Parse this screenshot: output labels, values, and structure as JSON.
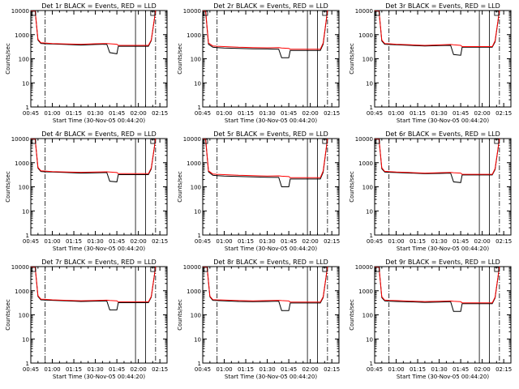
{
  "colors": {
    "events": "#000000",
    "lld": "#ff0000",
    "background": "#ffffff",
    "axes": "#000000"
  },
  "chart_data": [
    {
      "type": "line",
      "title": "Det 1r BLACK = Events, RED = LLD",
      "xlabel": "Start Time (30-Nov-05 00:44:20)",
      "ylabel": "Counts/sec",
      "x_ticks": [
        "00:45",
        "01:00",
        "01:15",
        "01:30",
        "01:45",
        "02:00",
        "02:15"
      ],
      "y_ticks": [
        "1",
        "10",
        "100",
        "1000",
        "10000"
      ],
      "y_scale": "log",
      "ylim": [
        1,
        10000
      ],
      "x": [
        "00:45",
        "00:48",
        "00:50",
        "00:52",
        "00:55",
        "01:00",
        "01:10",
        "01:20",
        "01:30",
        "01:38",
        "01:40",
        "01:45",
        "01:46",
        "01:52",
        "02:00",
        "02:07",
        "02:09",
        "02:12"
      ],
      "series": [
        {
          "name": "Events",
          "color": "#000000",
          "values": [
            10000,
            10000,
            600,
            430,
            420,
            410,
            390,
            370,
            390,
            400,
            180,
            160,
            330,
            330,
            330,
            330,
            560,
            10000
          ]
        },
        {
          "name": "LLD",
          "color": "#ff0000",
          "values": [
            10000,
            10000,
            640,
            460,
            450,
            430,
            410,
            400,
            420,
            430,
            420,
            400,
            360,
            360,
            360,
            360,
            600,
            10000
          ]
        }
      ],
      "vlines_dashdot": [
        "00:55",
        "02:12"
      ],
      "vlines_solid": [
        "01:58",
        "02:05"
      ]
    },
    {
      "type": "line",
      "title": "Det 2r BLACK = Events, RED = LLD",
      "xlabel": "Start Time (30-Nov-05 00:44:20)",
      "ylabel": "Counts/sec",
      "x_ticks": [
        "00:45",
        "01:00",
        "01:15",
        "01:30",
        "01:45",
        "02:00",
        "02:15"
      ],
      "y_ticks": [
        "1",
        "10",
        "100",
        "1000",
        "10000"
      ],
      "y_scale": "log",
      "ylim": [
        1,
        10000
      ],
      "x": [
        "00:45",
        "00:47",
        "00:49",
        "00:52",
        "00:55",
        "01:00",
        "01:10",
        "01:20",
        "01:30",
        "01:38",
        "01:40",
        "01:45",
        "01:46",
        "01:52",
        "02:00",
        "02:07",
        "02:09",
        "02:12"
      ],
      "series": [
        {
          "name": "Events",
          "color": "#000000",
          "values": [
            10000,
            10000,
            400,
            300,
            290,
            280,
            270,
            260,
            255,
            250,
            110,
            110,
            220,
            220,
            220,
            220,
            400,
            10000
          ]
        },
        {
          "name": "LLD",
          "color": "#ff0000",
          "values": [
            10000,
            10000,
            450,
            340,
            330,
            320,
            300,
            290,
            285,
            290,
            280,
            270,
            250,
            250,
            250,
            250,
            450,
            10000
          ]
        }
      ],
      "vlines_dashdot": [
        "00:55",
        "02:12"
      ],
      "vlines_solid": [
        "01:58",
        "02:05"
      ]
    },
    {
      "type": "line",
      "title": "Det 3r BLACK = Events, RED = LLD",
      "xlabel": "Start Time (30-Nov-05 00:44:20)",
      "ylabel": "Counts/sec",
      "x_ticks": [
        "00:45",
        "01:00",
        "01:15",
        "01:30",
        "01:45",
        "02:00",
        "02:15"
      ],
      "y_ticks": [
        "1",
        "10",
        "100",
        "1000",
        "10000"
      ],
      "y_scale": "log",
      "ylim": [
        1,
        10000
      ],
      "x": [
        "00:45",
        "00:48",
        "00:50",
        "00:52",
        "00:55",
        "01:00",
        "01:10",
        "01:20",
        "01:30",
        "01:38",
        "01:40",
        "01:45",
        "01:46",
        "01:52",
        "02:00",
        "02:07",
        "02:09",
        "02:12"
      ],
      "series": [
        {
          "name": "Events",
          "color": "#000000",
          "values": [
            10000,
            10000,
            550,
            400,
            390,
            380,
            360,
            340,
            350,
            360,
            150,
            140,
            300,
            300,
            300,
            300,
            500,
            10000
          ]
        },
        {
          "name": "LLD",
          "color": "#ff0000",
          "values": [
            10000,
            10000,
            600,
            430,
            420,
            400,
            380,
            360,
            375,
            390,
            380,
            360,
            320,
            320,
            320,
            320,
            550,
            10000
          ]
        }
      ],
      "vlines_dashdot": [
        "00:55",
        "02:12"
      ],
      "vlines_solid": [
        "01:58",
        "02:05"
      ]
    },
    {
      "type": "line",
      "title": "Det 4r BLACK = Events, RED = LLD",
      "xlabel": "Start Time (30-Nov-05 00:44:20)",
      "ylabel": "Counts/sec",
      "x_ticks": [
        "00:45",
        "01:00",
        "01:15",
        "01:30",
        "01:45",
        "02:00",
        "02:15"
      ],
      "y_ticks": [
        "1",
        "10",
        "100",
        "1000",
        "10000"
      ],
      "y_scale": "log",
      "ylim": [
        1,
        10000
      ],
      "x": [
        "00:45",
        "00:48",
        "00:50",
        "00:52",
        "00:55",
        "01:00",
        "01:10",
        "01:20",
        "01:30",
        "01:38",
        "01:40",
        "01:45",
        "01:46",
        "01:52",
        "02:00",
        "02:07",
        "02:09",
        "02:12"
      ],
      "series": [
        {
          "name": "Events",
          "color": "#000000",
          "values": [
            10000,
            10000,
            600,
            430,
            420,
            410,
            390,
            370,
            380,
            390,
            170,
            160,
            320,
            320,
            320,
            320,
            550,
            10000
          ]
        },
        {
          "name": "LLD",
          "color": "#ff0000",
          "values": [
            10000,
            10000,
            640,
            460,
            450,
            430,
            410,
            400,
            410,
            420,
            410,
            390,
            350,
            350,
            350,
            350,
            600,
            10000
          ]
        }
      ],
      "vlines_dashdot": [
        "00:55",
        "02:12"
      ],
      "vlines_solid": [
        "01:58",
        "02:05"
      ]
    },
    {
      "type": "line",
      "title": "Det 5r BLACK = Events, RED = LLD",
      "xlabel": "Start Time (30-Nov-05 00:44:20)",
      "ylabel": "Counts/sec",
      "x_ticks": [
        "00:45",
        "01:00",
        "01:15",
        "01:30",
        "01:45",
        "02:00",
        "02:15"
      ],
      "y_ticks": [
        "1",
        "10",
        "100",
        "1000",
        "10000"
      ],
      "y_scale": "log",
      "ylim": [
        1,
        10000
      ],
      "x": [
        "00:45",
        "00:47",
        "00:49",
        "00:52",
        "00:55",
        "01:00",
        "01:10",
        "01:20",
        "01:30",
        "01:38",
        "01:40",
        "01:45",
        "01:46",
        "01:52",
        "02:00",
        "02:07",
        "02:09",
        "02:12"
      ],
      "series": [
        {
          "name": "Events",
          "color": "#000000",
          "values": [
            10000,
            10000,
            420,
            300,
            290,
            280,
            270,
            260,
            250,
            245,
            100,
            100,
            210,
            210,
            210,
            210,
            400,
            10000
          ]
        },
        {
          "name": "LLD",
          "color": "#ff0000",
          "values": [
            10000,
            10000,
            460,
            340,
            330,
            320,
            300,
            290,
            280,
            285,
            275,
            265,
            240,
            240,
            240,
            240,
            450,
            10000
          ]
        }
      ],
      "vlines_dashdot": [
        "00:55",
        "02:12"
      ],
      "vlines_solid": [
        "01:58",
        "02:05"
      ]
    },
    {
      "type": "line",
      "title": "Det 6r BLACK = Events, RED = LLD",
      "xlabel": "Start Time (30-Nov-05 00:44:20)",
      "ylabel": "Counts/sec",
      "x_ticks": [
        "00:45",
        "01:00",
        "01:15",
        "01:30",
        "01:45",
        "02:00",
        "02:15"
      ],
      "y_ticks": [
        "1",
        "10",
        "100",
        "1000",
        "10000"
      ],
      "y_scale": "log",
      "ylim": [
        1,
        10000
      ],
      "x": [
        "00:45",
        "00:48",
        "00:50",
        "00:52",
        "00:55",
        "01:00",
        "01:10",
        "01:20",
        "01:30",
        "01:38",
        "01:40",
        "01:45",
        "01:46",
        "01:52",
        "02:00",
        "02:07",
        "02:09",
        "02:12"
      ],
      "series": [
        {
          "name": "Events",
          "color": "#000000",
          "values": [
            10000,
            10000,
            560,
            410,
            400,
            390,
            370,
            350,
            360,
            370,
            160,
            150,
            310,
            310,
            310,
            310,
            520,
            10000
          ]
        },
        {
          "name": "LLD",
          "color": "#ff0000",
          "values": [
            10000,
            10000,
            610,
            440,
            430,
            410,
            390,
            370,
            385,
            395,
            385,
            370,
            330,
            330,
            330,
            330,
            560,
            10000
          ]
        }
      ],
      "vlines_dashdot": [
        "00:55",
        "02:12"
      ],
      "vlines_solid": [
        "01:58",
        "02:05"
      ]
    },
    {
      "type": "line",
      "title": "Det 7r BLACK = Events, RED = LLD",
      "xlabel": "Start Time (30-Nov-05 00:44:20)",
      "ylabel": "Counts/sec",
      "x_ticks": [
        "00:45",
        "01:00",
        "01:15",
        "01:30",
        "01:45",
        "02:00",
        "02:15"
      ],
      "y_ticks": [
        "1",
        "10",
        "100",
        "1000",
        "10000"
      ],
      "y_scale": "log",
      "ylim": [
        1,
        10000
      ],
      "x": [
        "00:45",
        "00:48",
        "00:50",
        "00:52",
        "00:55",
        "01:00",
        "01:10",
        "01:20",
        "01:30",
        "01:38",
        "01:40",
        "01:45",
        "01:46",
        "01:52",
        "02:00",
        "02:07",
        "02:09",
        "02:12"
      ],
      "series": [
        {
          "name": "Events",
          "color": "#000000",
          "values": [
            10000,
            10000,
            580,
            420,
            410,
            400,
            380,
            360,
            370,
            380,
            160,
            160,
            320,
            320,
            320,
            320,
            540,
            10000
          ]
        },
        {
          "name": "LLD",
          "color": "#ff0000",
          "values": [
            10000,
            10000,
            620,
            450,
            440,
            420,
            400,
            385,
            395,
            405,
            395,
            380,
            345,
            345,
            345,
            345,
            580,
            10000
          ]
        }
      ],
      "vlines_dashdot": [
        "00:55",
        "02:12"
      ],
      "vlines_solid": [
        "01:58",
        "02:05"
      ]
    },
    {
      "type": "line",
      "title": "Det 8r BLACK = Events, RED = LLD",
      "xlabel": "Start Time (30-Nov-05 00:44:20)",
      "ylabel": "Counts/sec",
      "x_ticks": [
        "00:45",
        "01:00",
        "01:15",
        "01:30",
        "01:45",
        "02:00",
        "02:15"
      ],
      "y_ticks": [
        "1",
        "10",
        "100",
        "1000",
        "10000"
      ],
      "y_scale": "log",
      "ylim": [
        1,
        10000
      ],
      "x": [
        "00:45",
        "00:48",
        "00:50",
        "00:52",
        "00:55",
        "01:00",
        "01:10",
        "01:20",
        "01:30",
        "01:38",
        "01:40",
        "01:45",
        "01:46",
        "01:52",
        "02:00",
        "02:07",
        "02:09",
        "02:12"
      ],
      "series": [
        {
          "name": "Events",
          "color": "#000000",
          "values": [
            10000,
            10000,
            560,
            400,
            390,
            380,
            360,
            350,
            360,
            370,
            150,
            150,
            310,
            310,
            310,
            310,
            520,
            10000
          ]
        },
        {
          "name": "LLD",
          "color": "#ff0000",
          "values": [
            10000,
            10000,
            600,
            430,
            420,
            410,
            390,
            380,
            390,
            400,
            390,
            375,
            340,
            340,
            340,
            340,
            560,
            10000
          ]
        }
      ],
      "vlines_dashdot": [
        "00:55",
        "02:12"
      ],
      "vlines_solid": [
        "01:58",
        "02:05"
      ]
    },
    {
      "type": "line",
      "title": "Det 9r BLACK = Events, RED = LLD",
      "xlabel": "Start Time (30-Nov-05 00:44:20)",
      "ylabel": "Counts/sec",
      "x_ticks": [
        "00:45",
        "01:00",
        "01:15",
        "01:30",
        "01:45",
        "02:00",
        "02:15"
      ],
      "y_ticks": [
        "1",
        "10",
        "100",
        "1000",
        "10000"
      ],
      "y_scale": "log",
      "ylim": [
        1,
        10000
      ],
      "x": [
        "00:45",
        "00:48",
        "00:50",
        "00:52",
        "00:55",
        "01:00",
        "01:10",
        "01:20",
        "01:30",
        "01:38",
        "01:40",
        "01:45",
        "01:46",
        "01:52",
        "02:00",
        "02:07",
        "02:09",
        "02:12"
      ],
      "series": [
        {
          "name": "Events",
          "color": "#000000",
          "values": [
            10000,
            10000,
            520,
            380,
            370,
            360,
            345,
            330,
            340,
            350,
            140,
            140,
            290,
            290,
            290,
            290,
            500,
            10000
          ]
        },
        {
          "name": "LLD",
          "color": "#ff0000",
          "values": [
            10000,
            10000,
            560,
            410,
            400,
            390,
            370,
            355,
            365,
            375,
            365,
            350,
            315,
            315,
            315,
            315,
            540,
            10000
          ]
        }
      ],
      "vlines_dashdot": [
        "00:55",
        "02:12"
      ],
      "vlines_solid": [
        "01:58",
        "02:05"
      ]
    }
  ]
}
